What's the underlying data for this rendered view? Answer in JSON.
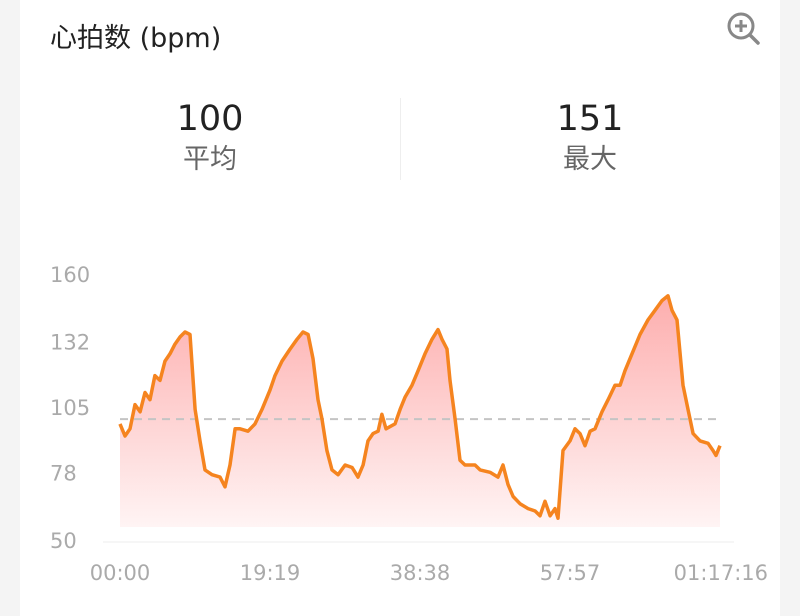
{
  "header": {
    "title": "心拍数 (bpm)",
    "zoom_icon": "zoom-in-icon"
  },
  "stats": [
    {
      "value": "100",
      "label": "平均"
    },
    {
      "value": "151",
      "label": "最大"
    }
  ],
  "colors": {
    "line": "#f5841f",
    "fill_top": "#fdaeae",
    "fill_bottom": "#fff4f4",
    "average_line": "#c4c4c4"
  },
  "chart_data": {
    "type": "area",
    "title": "心拍数 (bpm)",
    "xlabel": "",
    "ylabel": "",
    "x_unit": "elapsed seconds",
    "ylim": [
      50,
      160
    ],
    "xlim": [
      0,
      4636
    ],
    "y_ticks": [
      "160",
      "132",
      "105",
      "78",
      "50"
    ],
    "y_tick_values": [
      160,
      132,
      105,
      78,
      50
    ],
    "x_ticks": [
      "00:00",
      "19:19",
      "38:38",
      "57:57",
      "01:17:16"
    ],
    "x_tick_values": [
      0,
      1159,
      2318,
      3477,
      4636
    ],
    "average": 100,
    "grid": false,
    "x": [
      0,
      39,
      77,
      116,
      155,
      193,
      232,
      270,
      309,
      348,
      386,
      425,
      464,
      502,
      541,
      580,
      618,
      657,
      711,
      773,
      811,
      850,
      889,
      927,
      989,
      1043,
      1097,
      1159,
      1198,
      1252,
      1314,
      1368,
      1414,
      1453,
      1491,
      1530,
      1561,
      1599,
      1638,
      1685,
      1739,
      1793,
      1839,
      1878,
      1916,
      1955,
      1994,
      2024,
      2055,
      2125,
      2164,
      2202,
      2256,
      2303,
      2357,
      2411,
      2457,
      2488,
      2527,
      2550,
      2589,
      2627,
      2666,
      2743,
      2782,
      2859,
      2921,
      2959,
      2998,
      3037,
      3091,
      3153,
      3207,
      3245,
      3284,
      3323,
      3361,
      3384,
      3423,
      3477,
      3516,
      3554,
      3593,
      3632,
      3670,
      3724,
      3771,
      3825,
      3864,
      3902,
      3956,
      4018,
      4080,
      4134,
      4188,
      4234,
      4265,
      4304,
      4350,
      4389,
      4428,
      4482,
      4543,
      4582,
      4605,
      4636
    ],
    "values": [
      98,
      93,
      96,
      106,
      103,
      111,
      108,
      118,
      116,
      124,
      127,
      131,
      134,
      136,
      135,
      104,
      91,
      79,
      77,
      76,
      72,
      81,
      96,
      96,
      95,
      98,
      104,
      112,
      118,
      124,
      129,
      133,
      136,
      135,
      125,
      108,
      100,
      87,
      79,
      77,
      81,
      80,
      76,
      81,
      91,
      94,
      95,
      102,
      96,
      98,
      104,
      109,
      114,
      120,
      127,
      133,
      137,
      133,
      129,
      116,
      100,
      83,
      81,
      81,
      79,
      78,
      76,
      81,
      73,
      68,
      65,
      63,
      62,
      60,
      66,
      60,
      63,
      59,
      87,
      91,
      96,
      94,
      89,
      95,
      96,
      103,
      108,
      114,
      114,
      120,
      127,
      135,
      141,
      145,
      149,
      151,
      145,
      141,
      114,
      104,
      94,
      91,
      90,
      87,
      85,
      89
    ]
  }
}
